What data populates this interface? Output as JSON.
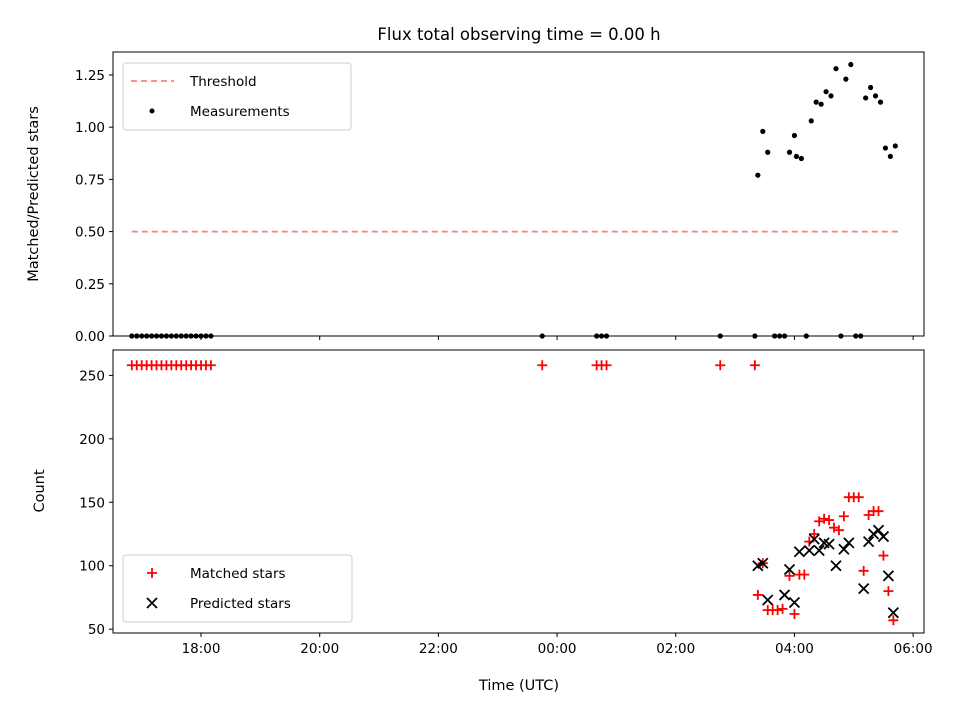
{
  "chart_data": [
    {
      "type": "scatter",
      "title": "Flux total observing time = 0.00 h",
      "xlabel": "",
      "ylabel": "Matched/Predicted stars",
      "xlim": [
        "16:31",
        "06:11"
      ],
      "ylim": [
        0,
        1.36
      ],
      "y_ticks": [
        0.0,
        0.25,
        0.5,
        0.75,
        1.0,
        1.25
      ],
      "y_tick_labels": [
        "0.00",
        "0.25",
        "0.50",
        "0.75",
        "1.00",
        "1.25"
      ],
      "legend_position": "upper left",
      "threshold": {
        "name": "Threshold",
        "y": 0.5,
        "x_start": "16:50",
        "x_end": "05:45",
        "color": "#ff7f7f",
        "style": "dashed"
      },
      "series": [
        {
          "name": "Measurements",
          "marker": "dot",
          "color": "#000000",
          "points": [
            [
              "16:50",
              0
            ],
            [
              "16:55",
              0
            ],
            [
              "17:00",
              0
            ],
            [
              "17:05",
              0
            ],
            [
              "17:10",
              0
            ],
            [
              "17:15",
              0
            ],
            [
              "17:20",
              0
            ],
            [
              "17:25",
              0
            ],
            [
              "17:30",
              0
            ],
            [
              "17:35",
              0
            ],
            [
              "17:40",
              0
            ],
            [
              "17:45",
              0
            ],
            [
              "17:50",
              0
            ],
            [
              "17:55",
              0
            ],
            [
              "18:00",
              0
            ],
            [
              "18:05",
              0
            ],
            [
              "18:10",
              0
            ],
            [
              "23:45",
              0
            ],
            [
              "00:40",
              0
            ],
            [
              "00:45",
              0
            ],
            [
              "00:50",
              0
            ],
            [
              "02:45",
              0
            ],
            [
              "03:20",
              0
            ],
            [
              "03:23",
              0.77
            ],
            [
              "03:28",
              0.98
            ],
            [
              "03:33",
              0.88
            ],
            [
              "03:40",
              0
            ],
            [
              "03:45",
              0
            ],
            [
              "03:50",
              0
            ],
            [
              "03:55",
              0.88
            ],
            [
              "04:00",
              0.96
            ],
            [
              "04:02",
              0.86
            ],
            [
              "04:07",
              0.85
            ],
            [
              "04:12",
              0
            ],
            [
              "04:17",
              1.03
            ],
            [
              "04:22",
              1.12
            ],
            [
              "04:27",
              1.11
            ],
            [
              "04:32",
              1.17
            ],
            [
              "04:37",
              1.15
            ],
            [
              "04:42",
              1.28
            ],
            [
              "04:47",
              0
            ],
            [
              "04:52",
              1.23
            ],
            [
              "04:57",
              1.3
            ],
            [
              "05:02",
              0
            ],
            [
              "05:07",
              0
            ],
            [
              "05:12",
              1.14
            ],
            [
              "05:17",
              1.19
            ],
            [
              "05:22",
              1.15
            ],
            [
              "05:27",
              1.12
            ],
            [
              "05:32",
              0.9
            ],
            [
              "05:37",
              0.86
            ],
            [
              "05:42",
              0.91
            ]
          ]
        }
      ]
    },
    {
      "type": "scatter",
      "xlabel": "Time (UTC)",
      "ylabel": "Count",
      "xlim": [
        "16:31",
        "06:11"
      ],
      "ylim": [
        47,
        270
      ],
      "x_ticks": [
        "18:00",
        "20:00",
        "22:00",
        "00:00",
        "02:00",
        "04:00",
        "06:00"
      ],
      "y_ticks": [
        50,
        100,
        150,
        200,
        250
      ],
      "y_tick_labels": [
        "50",
        "100",
        "150",
        "200",
        "250"
      ],
      "legend_position": "lower left",
      "series": [
        {
          "name": "Matched stars",
          "marker": "plus",
          "color": "#ff0000",
          "points": [
            [
              "16:50",
              258
            ],
            [
              "16:55",
              258
            ],
            [
              "17:00",
              258
            ],
            [
              "17:05",
              258
            ],
            [
              "17:10",
              258
            ],
            [
              "17:15",
              258
            ],
            [
              "17:20",
              258
            ],
            [
              "17:25",
              258
            ],
            [
              "17:30",
              258
            ],
            [
              "17:35",
              258
            ],
            [
              "17:40",
              258
            ],
            [
              "17:45",
              258
            ],
            [
              "17:50",
              258
            ],
            [
              "17:55",
              258
            ],
            [
              "18:00",
              258
            ],
            [
              "18:05",
              258
            ],
            [
              "18:10",
              258
            ],
            [
              "23:45",
              258
            ],
            [
              "00:40",
              258
            ],
            [
              "00:45",
              258
            ],
            [
              "00:50",
              258
            ],
            [
              "02:45",
              258
            ],
            [
              "03:20",
              258
            ],
            [
              "03:23",
              77
            ],
            [
              "03:28",
              102
            ],
            [
              "03:33",
              65
            ],
            [
              "03:38",
              65
            ],
            [
              "03:43",
              65
            ],
            [
              "03:48",
              66
            ],
            [
              "03:55",
              92
            ],
            [
              "04:00",
              62
            ],
            [
              "04:05",
              93
            ],
            [
              "04:10",
              93
            ],
            [
              "04:15",
              119
            ],
            [
              "04:20",
              125
            ],
            [
              "04:25",
              135
            ],
            [
              "04:30",
              137
            ],
            [
              "04:35",
              136
            ],
            [
              "04:40",
              130
            ],
            [
              "04:45",
              128
            ],
            [
              "04:50",
              139
            ],
            [
              "04:55",
              154
            ],
            [
              "05:00",
              154
            ],
            [
              "05:05",
              154
            ],
            [
              "05:10",
              96
            ],
            [
              "05:15",
              140
            ],
            [
              "05:20",
              143
            ],
            [
              "05:25",
              143
            ],
            [
              "05:30",
              108
            ],
            [
              "05:35",
              80
            ],
            [
              "05:40",
              57
            ]
          ]
        },
        {
          "name": "Predicted stars",
          "marker": "x",
          "color": "#000000",
          "points": [
            [
              "03:23",
              100
            ],
            [
              "03:28",
              102
            ],
            [
              "03:33",
              73
            ],
            [
              "03:50",
              77
            ],
            [
              "03:55",
              97
            ],
            [
              "04:00",
              71
            ],
            [
              "04:05",
              111
            ],
            [
              "04:15",
              112
            ],
            [
              "04:20",
              121
            ],
            [
              "04:25",
              112
            ],
            [
              "04:30",
              118
            ],
            [
              "04:35",
              117
            ],
            [
              "04:42",
              100
            ],
            [
              "04:50",
              113
            ],
            [
              "04:55",
              118
            ],
            [
              "05:10",
              82
            ],
            [
              "05:15",
              119
            ],
            [
              "05:20",
              125
            ],
            [
              "05:25",
              128
            ],
            [
              "05:30",
              123
            ],
            [
              "05:35",
              92
            ],
            [
              "05:40",
              63
            ]
          ]
        }
      ]
    }
  ]
}
